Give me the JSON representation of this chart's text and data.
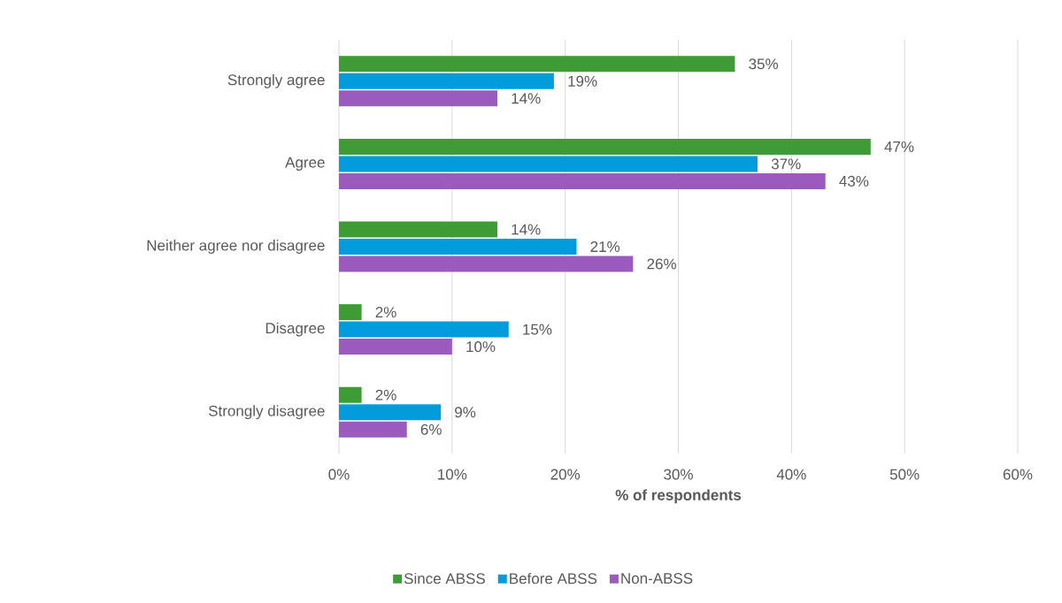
{
  "chart_data": {
    "type": "bar",
    "orientation": "horizontal",
    "xlabel": "% of respondents",
    "categories": [
      "Strongly agree",
      "Agree",
      "Neither agree nor disagree",
      "Disagree",
      "Strongly disagree"
    ],
    "series": [
      {
        "name": "Since ABSS",
        "color": "#3e9b35",
        "values": [
          35,
          47,
          14,
          2,
          2
        ],
        "value_labels": [
          "35%",
          "47%",
          "14%",
          "2%",
          "2%"
        ]
      },
      {
        "name": "Before ABSS",
        "color": "#029cdc",
        "values": [
          19,
          37,
          21,
          15,
          9
        ],
        "value_labels": [
          "19%",
          "37%",
          "21%",
          "15%",
          "9%"
        ]
      },
      {
        "name": "Non-ABSS",
        "color": "#9b5bbe",
        "values": [
          14,
          43,
          26,
          10,
          6
        ],
        "value_labels": [
          "14%",
          "43%",
          "26%",
          "10%",
          "6%"
        ]
      }
    ],
    "xlim": [
      0,
      60
    ],
    "xticks": [
      {
        "value": 0,
        "label": "0%"
      },
      {
        "value": 10,
        "label": "10%"
      },
      {
        "value": 20,
        "label": "20%"
      },
      {
        "value": 30,
        "label": "30%"
      },
      {
        "value": 40,
        "label": "40%"
      },
      {
        "value": 50,
        "label": "50%"
      },
      {
        "value": 60,
        "label": "60%"
      }
    ],
    "grid": "x",
    "legend": "bottom"
  }
}
